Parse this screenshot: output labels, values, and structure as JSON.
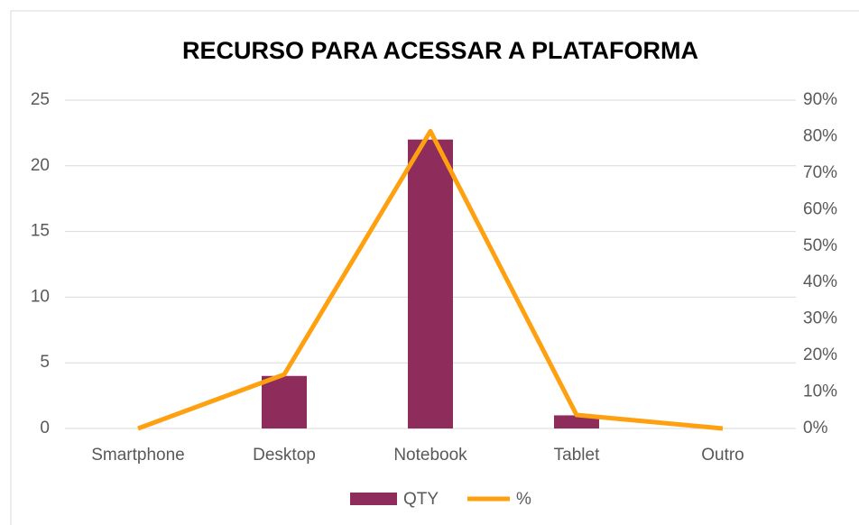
{
  "chart_data": {
    "type": "bar",
    "title": "RECURSO PARA ACESSAR A PLATAFORMA",
    "categories": [
      "Smartphone",
      "Desktop",
      "Notebook",
      "Tablet",
      "Outro"
    ],
    "series": [
      {
        "name": "QTY",
        "type": "bar",
        "color": "#8e2d5c",
        "values": [
          0,
          4,
          22,
          1,
          0
        ]
      },
      {
        "name": "%",
        "type": "line",
        "axis": "y2",
        "color": "#ffa010",
        "values": [
          0,
          14.8,
          81.5,
          3.7,
          0
        ]
      }
    ],
    "ylim": [
      0,
      25
    ],
    "yticks": [
      0,
      5,
      10,
      15,
      20,
      25
    ],
    "y2lim": [
      0,
      90
    ],
    "y2ticks": [
      {
        "value": 0,
        "label": "0%"
      },
      {
        "value": 10,
        "label": "10%"
      },
      {
        "value": 20,
        "label": "20%"
      },
      {
        "value": 30,
        "label": "30%"
      },
      {
        "value": 40,
        "label": "40%"
      },
      {
        "value": 50,
        "label": "50%"
      },
      {
        "value": 60,
        "label": "60%"
      },
      {
        "value": 70,
        "label": "70%"
      },
      {
        "value": 80,
        "label": "80%"
      },
      {
        "value": 90,
        "label": "90%"
      }
    ],
    "grid": true,
    "legend": "bottom"
  }
}
